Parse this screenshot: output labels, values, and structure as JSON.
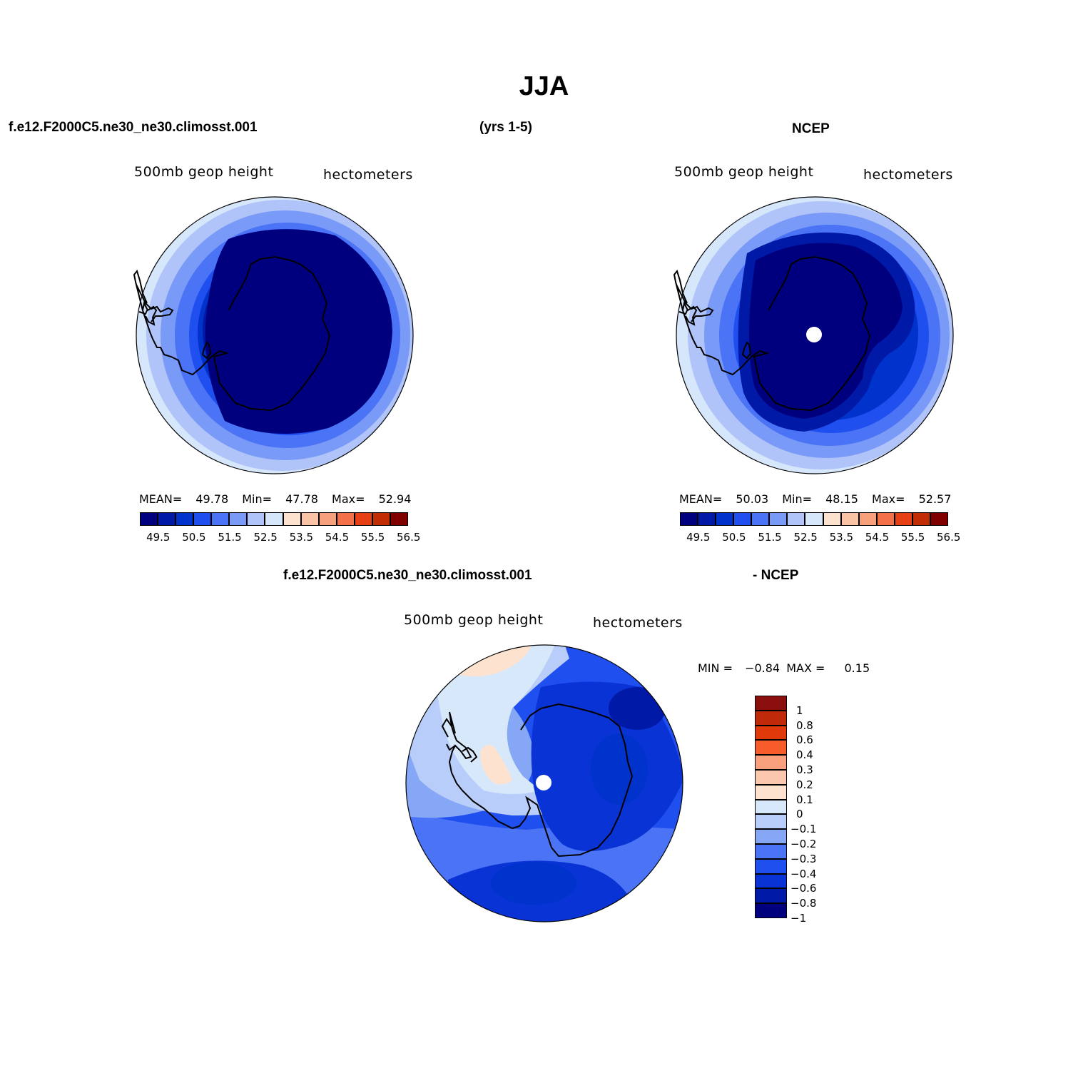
{
  "figure": {
    "title": "JJA",
    "top_left_case": "f.e12.F2000C5.ne30_ne30.climosst.001",
    "years": "(yrs 1-5)",
    "top_right_case": "NCEP",
    "diff_case": "f.e12.F2000C5.ne30_ne30.climosst.001",
    "diff_minus": "- NCEP"
  },
  "panels": [
    {
      "id": "model",
      "variable": "500mb  geop  height",
      "units": "hectometers",
      "stats": {
        "mean_label": "MEAN=",
        "mean": "49.78",
        "min_label": "Min=",
        "min": "47.78",
        "max_label": "Max=",
        "max": "52.94"
      }
    },
    {
      "id": "ncep",
      "variable": "500mb  geop  height",
      "units": "hectometers",
      "stats": {
        "mean_label": "MEAN=",
        "mean": "50.03",
        "min_label": "Min=",
        "min": "48.15",
        "max_label": "Max=",
        "max": "52.57"
      }
    },
    {
      "id": "diff",
      "variable": "500mb  geop  height",
      "units": "hectometers",
      "stats": {
        "min_label": "MIN =",
        "min": "−0.84",
        "max_label": "MAX =",
        "max": "0.15"
      }
    }
  ],
  "colorbars": {
    "main": {
      "colors": [
        "#00007f",
        "#0019a6",
        "#0033cc",
        "#1f4fef",
        "#4a73f5",
        "#7a9af7",
        "#b0c4f9",
        "#d6e6fb",
        "#fde3cf",
        "#fbc3a6",
        "#f7a07c",
        "#f37048",
        "#e84015",
        "#c12d04",
        "#800000"
      ],
      "tick_labels": [
        "49.5",
        "50.5",
        "51.5",
        "52.5",
        "53.5",
        "54.5",
        "55.5",
        "56.5"
      ]
    },
    "diff": {
      "colors": [
        "#8a0e0e",
        "#c0290a",
        "#e03a0b",
        "#f75c2a",
        "#f9a07c",
        "#fbc7ae",
        "#fde3cf",
        "#d8e8fb",
        "#b8cdf9",
        "#86a6f6",
        "#4a73f5",
        "#1f4fef",
        "#0a33d6",
        "#0019a6",
        "#00007f"
      ],
      "tick_labels": [
        "1",
        "0.8",
        "0.6",
        "0.4",
        "0.3",
        "0.2",
        "0.1",
        "0",
        "−0.1",
        "−0.2",
        "−0.3",
        "−0.4",
        "−0.6",
        "−0.8",
        "−1"
      ]
    }
  }
}
